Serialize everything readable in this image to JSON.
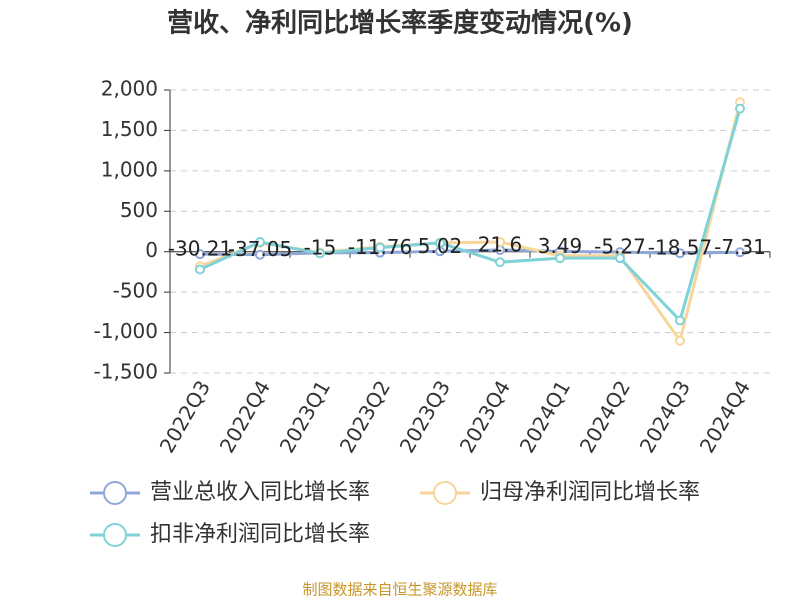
{
  "chart_data": {
    "type": "line",
    "title": "营收、净利同比增长率季度变动情况(%)",
    "categories": [
      "2022Q3",
      "2022Q4",
      "2023Q1",
      "2023Q2",
      "2023Q3",
      "2023Q4",
      "2024Q1",
      "2024Q2",
      "2024Q3",
      "2024Q4"
    ],
    "series": [
      {
        "name": "营业总收入同比增长率",
        "color": "#8fa8d8",
        "values": [
          -30.21,
          -37.05,
          -15,
          -11.76,
          5.02,
          21.6,
          3.49,
          -5.27,
          -18.57,
          -7.31
        ]
      },
      {
        "name": "归母净利润同比增长率",
        "color": "#f8d59a",
        "values": [
          -180,
          110,
          -10,
          60,
          110,
          120,
          -50,
          -50,
          -1100,
          1850
        ]
      },
      {
        "name": "扣非净利润同比增长率",
        "color": "#7fd3d8",
        "values": [
          -220,
          120,
          -20,
          50,
          110,
          -130,
          -80,
          -80,
          -850,
          1770
        ]
      }
    ],
    "ylim": [
      -1500,
      2000
    ],
    "yticks": [
      {
        "value": -1500,
        "label": "-1,500"
      },
      {
        "value": -1000,
        "label": "-1,000"
      },
      -500,
      0,
      500,
      {
        "value": 1000,
        "label": "1,000"
      },
      {
        "value": 1500,
        "label": "1,500"
      },
      {
        "value": 2000,
        "label": "2,000"
      }
    ],
    "grid": true,
    "source": "制图数据来自恒生聚源数据库"
  }
}
